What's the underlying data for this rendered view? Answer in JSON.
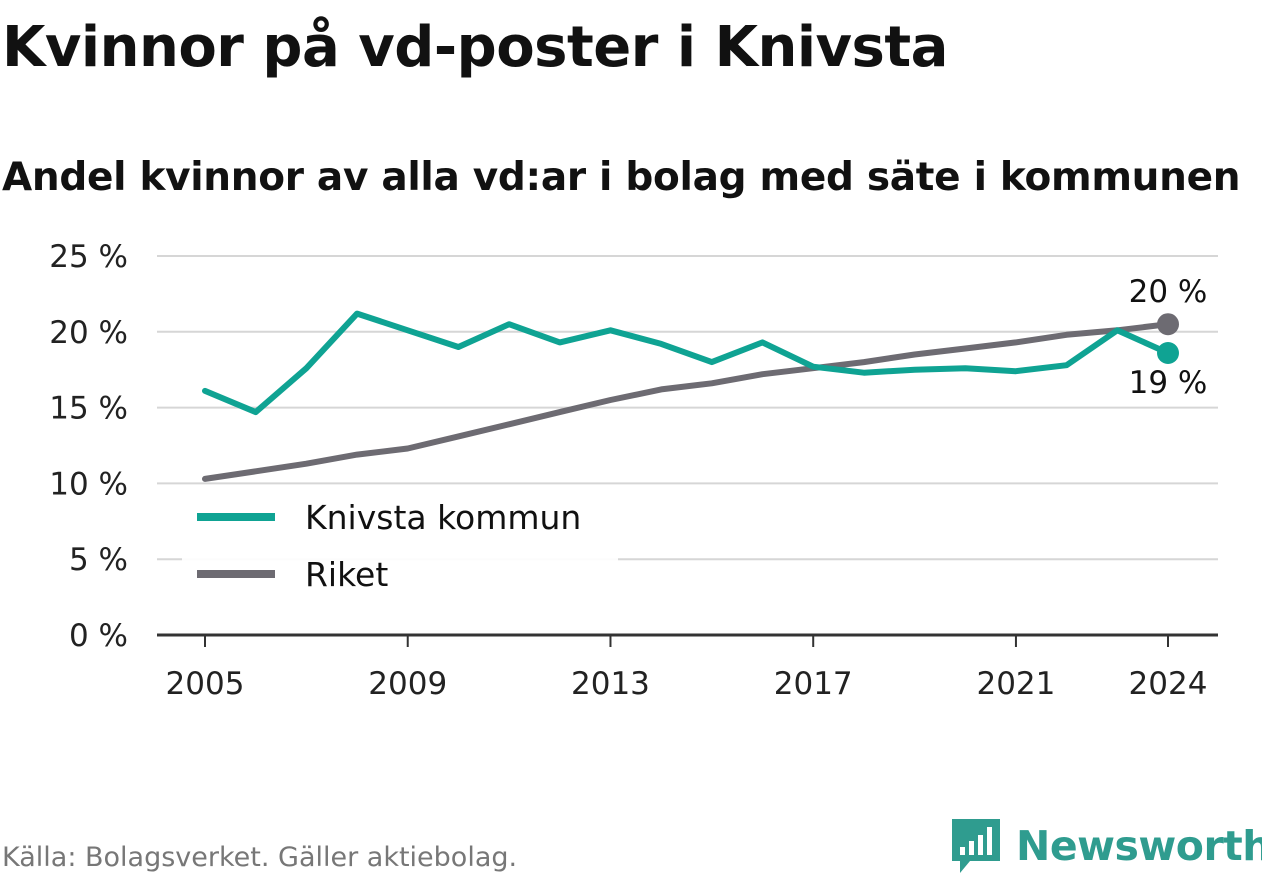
{
  "title": "Kvinnor på vd-poster i Knivsta",
  "subtitle": "Andel kvinnor av alla vd:ar i bolag med säte i kommunen",
  "source": "Källa: Bolagsverket. Gäller aktiebolag.",
  "brand": {
    "name": "Newsworthy",
    "icon": "bar-chart-icon",
    "color": "#2f9c8f"
  },
  "chart_data": {
    "type": "line",
    "title": "Kvinnor på vd-poster i Knivsta",
    "subtitle": "Andel kvinnor av alla vd:ar i bolag med säte i kommunen",
    "xlabel": "",
    "ylabel": "",
    "x": [
      2005,
      2006,
      2007,
      2008,
      2009,
      2010,
      2011,
      2012,
      2013,
      2014,
      2015,
      2016,
      2017,
      2018,
      2019,
      2020,
      2021,
      2022,
      2023,
      2024
    ],
    "xticks": [
      2005,
      2009,
      2013,
      2017,
      2021,
      2024
    ],
    "xlim": [
      2004,
      2025
    ],
    "yticks": [
      0,
      5,
      10,
      15,
      20,
      25
    ],
    "ytick_labels": [
      "0 %",
      "5 %",
      "10 %",
      "15 %",
      "20 %",
      "25 %"
    ],
    "ylim": [
      0,
      25
    ],
    "grid": true,
    "legend_position": "bottom-left",
    "series": [
      {
        "name": "Knivsta kommun",
        "color": "#0fa393",
        "values": [
          16.1,
          14.7,
          17.6,
          21.2,
          20.1,
          19.0,
          20.5,
          19.3,
          20.1,
          19.2,
          18.0,
          19.3,
          17.7,
          17.3,
          17.5,
          17.6,
          17.4,
          17.8,
          20.1,
          18.6
        ],
        "end_label": "19 %"
      },
      {
        "name": "Riket",
        "color": "#6d6b72",
        "values": [
          10.3,
          10.8,
          11.3,
          11.9,
          12.3,
          13.1,
          13.9,
          14.7,
          15.5,
          16.2,
          16.6,
          17.2,
          17.6,
          18.0,
          18.5,
          18.9,
          19.3,
          19.8,
          20.1,
          20.5
        ],
        "end_label": "20 %"
      }
    ]
  }
}
